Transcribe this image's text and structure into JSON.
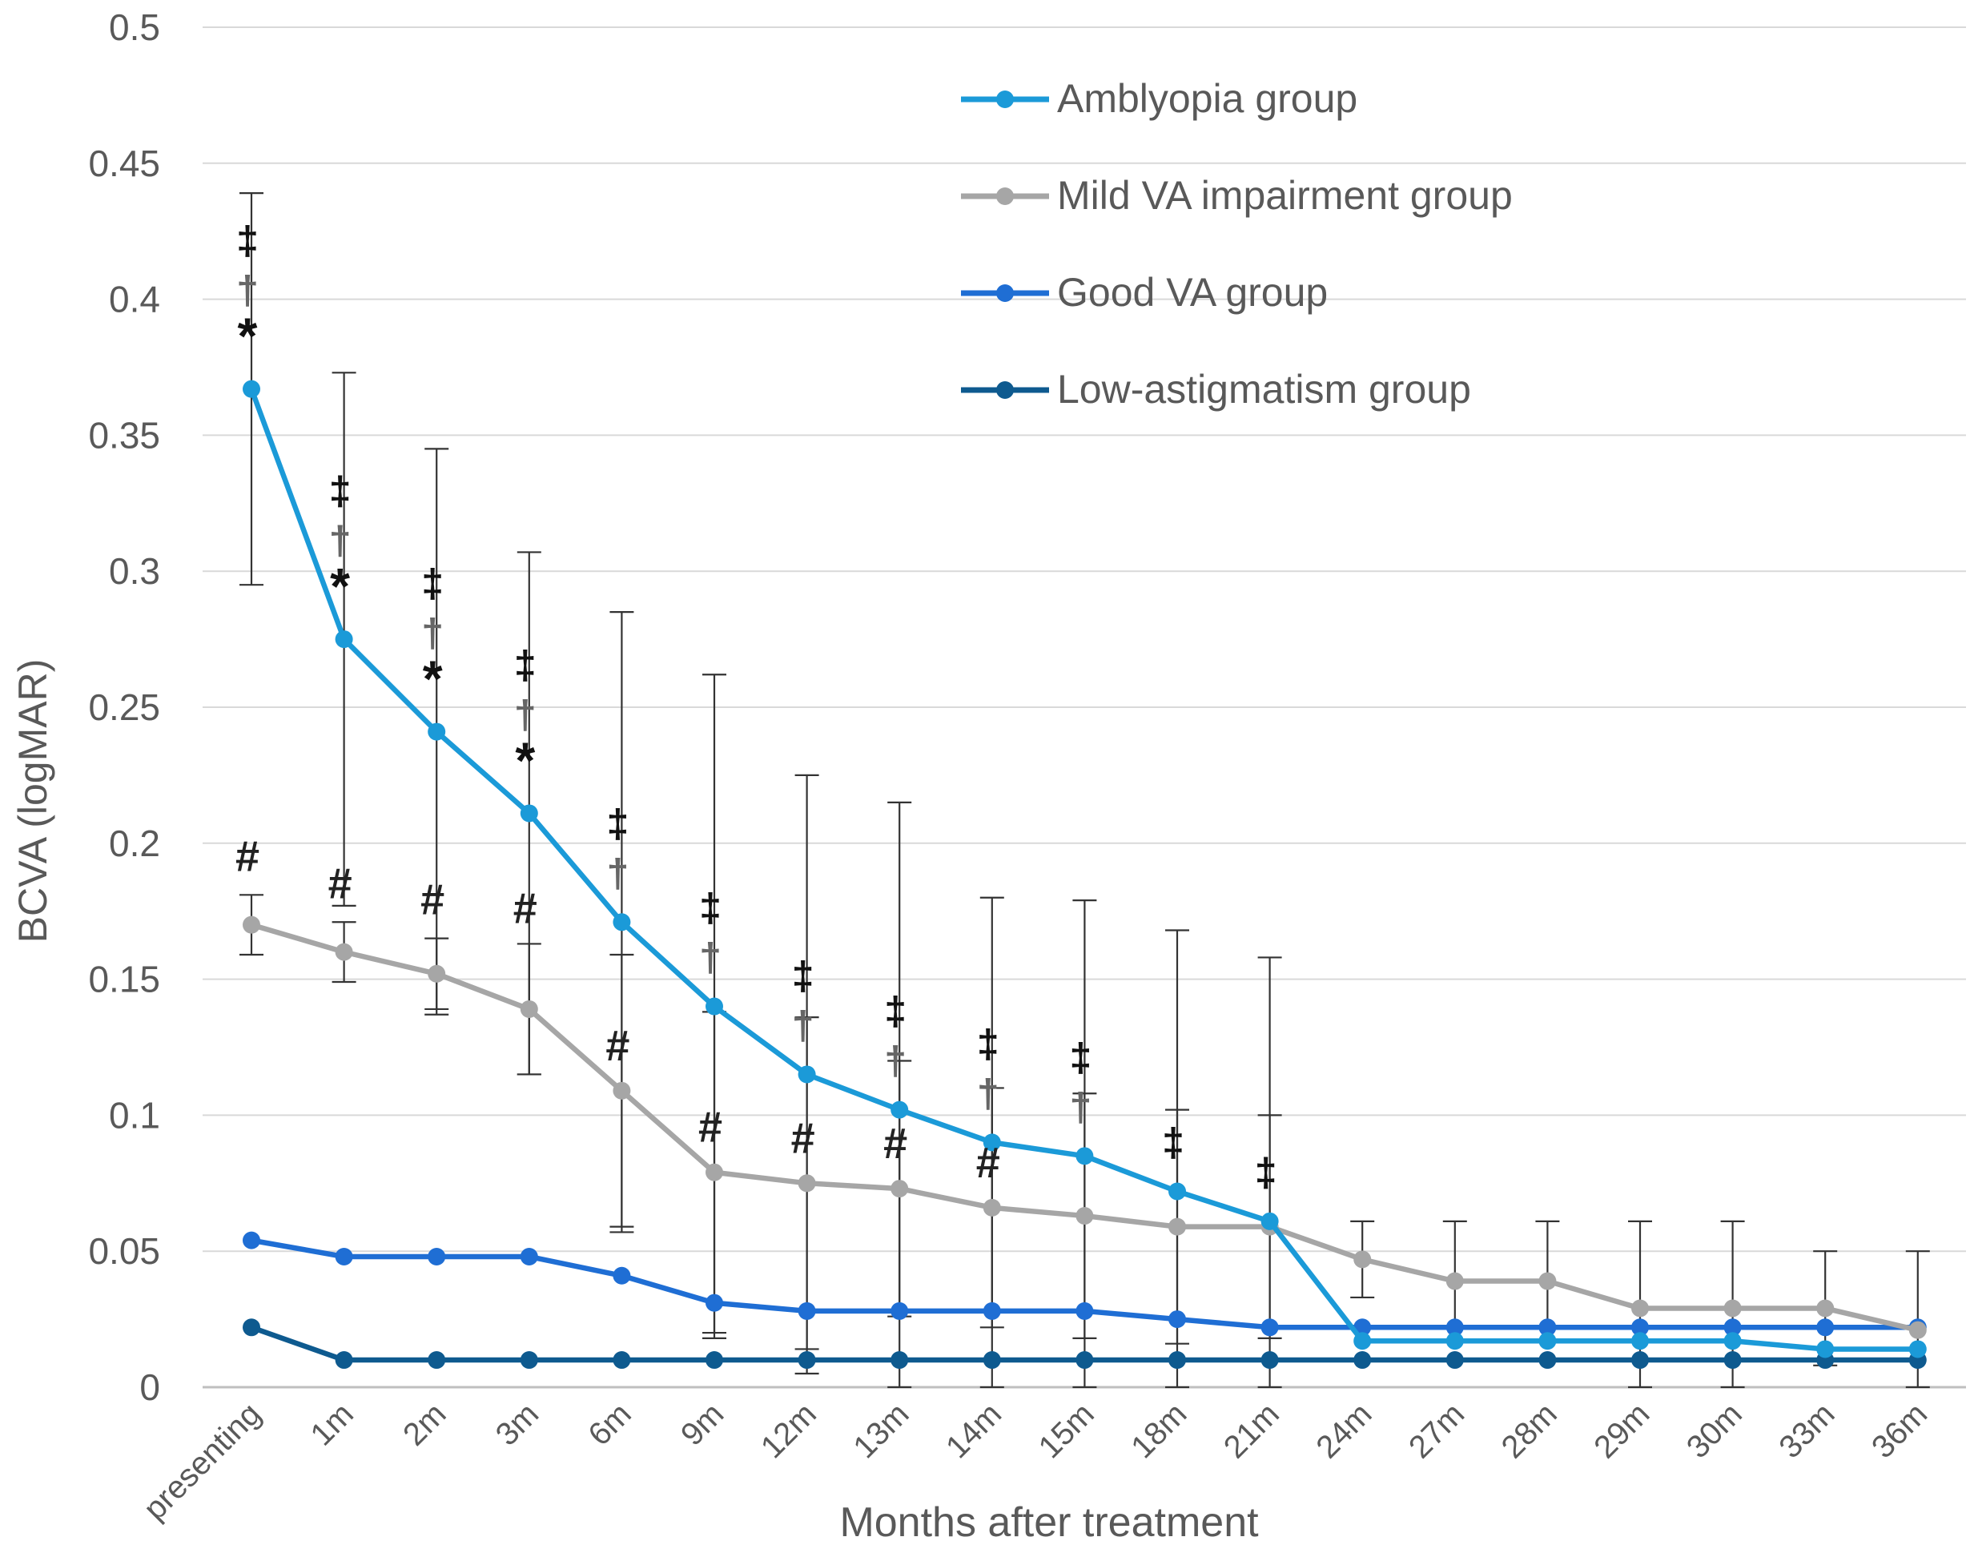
{
  "chart_data": {
    "type": "line",
    "title": "",
    "xlabel": "Months  after treatment",
    "ylabel": "BCVA (logMAR)",
    "ylim": [
      0,
      0.5
    ],
    "yticks": [
      "0",
      "0.05",
      "0.1",
      "0.15",
      "0.2",
      "0.25",
      "0.3",
      "0.35",
      "0.4",
      "0.45",
      "0.5"
    ],
    "grid": true,
    "legend_position": "top-right",
    "categories": [
      "presenting",
      "1m",
      "2m",
      "3m",
      "6m",
      "9m",
      "12m",
      "13m",
      "14m",
      "15m",
      "18m",
      "21m",
      "24m",
      "27m",
      "28m",
      "29m",
      "30m",
      "33m",
      "36m"
    ],
    "series": [
      {
        "name": "Amblyopia group",
        "color": "#1b9ad8",
        "values": [
          0.367,
          0.275,
          0.241,
          0.211,
          0.171,
          0.14,
          0.115,
          0.102,
          0.09,
          0.085,
          0.072,
          0.061,
          0.017,
          0.017,
          0.017,
          0.017,
          0.017,
          0.014,
          0.014
        ],
        "errors": [
          0.072,
          0.098,
          0.104,
          0.096,
          0.114,
          0.122,
          0.11,
          0.113,
          0.09,
          0.094,
          0.096,
          0.097,
          0.0,
          0.0,
          0.0,
          0.0,
          0.0,
          0.0,
          0.0
        ]
      },
      {
        "name": "Mild VA impairment group",
        "color": "#a6a6a6",
        "values": [
          0.17,
          0.16,
          0.152,
          0.139,
          0.109,
          0.079,
          0.075,
          0.073,
          0.066,
          0.063,
          0.059,
          0.059,
          0.047,
          0.039,
          0.039,
          0.029,
          0.029,
          0.029,
          0.021
        ],
        "errors": [
          0.011,
          0.011,
          0.013,
          0.024,
          0.05,
          0.059,
          0.061,
          0.047,
          0.044,
          0.045,
          0.043,
          0.041,
          0.014,
          0.022,
          0.022,
          0.032,
          0.032,
          0.021,
          0.029
        ]
      },
      {
        "name": "Good VA group",
        "color": "#1f6ed4",
        "values": [
          0.054,
          0.048,
          0.048,
          0.048,
          0.041,
          0.031,
          0.028,
          0.028,
          0.028,
          0.028,
          0.025,
          0.022,
          0.022,
          0.022,
          0.022,
          0.022,
          0.022,
          0.022,
          0.022
        ]
      },
      {
        "name": "Low-astigmatism group",
        "color": "#0e5a8f",
        "values": [
          0.022,
          0.01,
          0.01,
          0.01,
          0.01,
          0.01,
          0.01,
          0.01,
          0.01,
          0.01,
          0.01,
          0.01,
          0.01,
          0.01,
          0.01,
          0.01,
          0.01,
          0.01,
          0.01
        ]
      }
    ],
    "annotations": [
      {
        "category": "presenting",
        "series": "Amblyopia group",
        "symbols": [
          "*",
          "†",
          "‡"
        ]
      },
      {
        "category": "1m",
        "series": "Amblyopia group",
        "symbols": [
          "*",
          "†",
          "‡"
        ]
      },
      {
        "category": "2m",
        "series": "Amblyopia group",
        "symbols": [
          "*",
          "†",
          "‡"
        ]
      },
      {
        "category": "3m",
        "series": "Amblyopia group",
        "symbols": [
          "*",
          "†",
          "‡"
        ]
      },
      {
        "category": "6m",
        "series": "Amblyopia group",
        "symbols": [
          "†",
          "‡"
        ]
      },
      {
        "category": "9m",
        "series": "Amblyopia group",
        "symbols": [
          "†",
          "‡"
        ]
      },
      {
        "category": "12m",
        "series": "Amblyopia group",
        "symbols": [
          "†",
          "‡"
        ]
      },
      {
        "category": "13m",
        "series": "Amblyopia group",
        "symbols": [
          "†",
          "‡"
        ]
      },
      {
        "category": "14m",
        "series": "Amblyopia group",
        "symbols": [
          "†",
          "‡"
        ]
      },
      {
        "category": "15m",
        "series": "Amblyopia group",
        "symbols": [
          "†",
          "‡"
        ]
      },
      {
        "category": "18m",
        "series": "Amblyopia group",
        "symbols": [
          "‡"
        ]
      },
      {
        "category": "21m",
        "series": "Amblyopia group",
        "symbols": [
          "‡"
        ]
      },
      {
        "category": "presenting",
        "series": "Mild VA impairment group",
        "symbols": [
          "#"
        ]
      },
      {
        "category": "1m",
        "series": "Mild VA impairment group",
        "symbols": [
          "#"
        ]
      },
      {
        "category": "2m",
        "series": "Mild VA impairment group",
        "symbols": [
          "#"
        ]
      },
      {
        "category": "3m",
        "series": "Mild VA impairment group",
        "symbols": [
          "#"
        ]
      },
      {
        "category": "6m",
        "series": "Mild VA impairment group",
        "symbols": [
          "#"
        ]
      },
      {
        "category": "9m",
        "series": "Mild VA impairment group",
        "symbols": [
          "#"
        ]
      },
      {
        "category": "12m",
        "series": "Mild VA impairment group",
        "symbols": [
          "#"
        ]
      },
      {
        "category": "13m",
        "series": "Mild VA impairment group",
        "symbols": [
          "#"
        ]
      },
      {
        "category": "14m",
        "series": "Mild VA impairment group",
        "symbols": [
          "#"
        ]
      }
    ]
  }
}
